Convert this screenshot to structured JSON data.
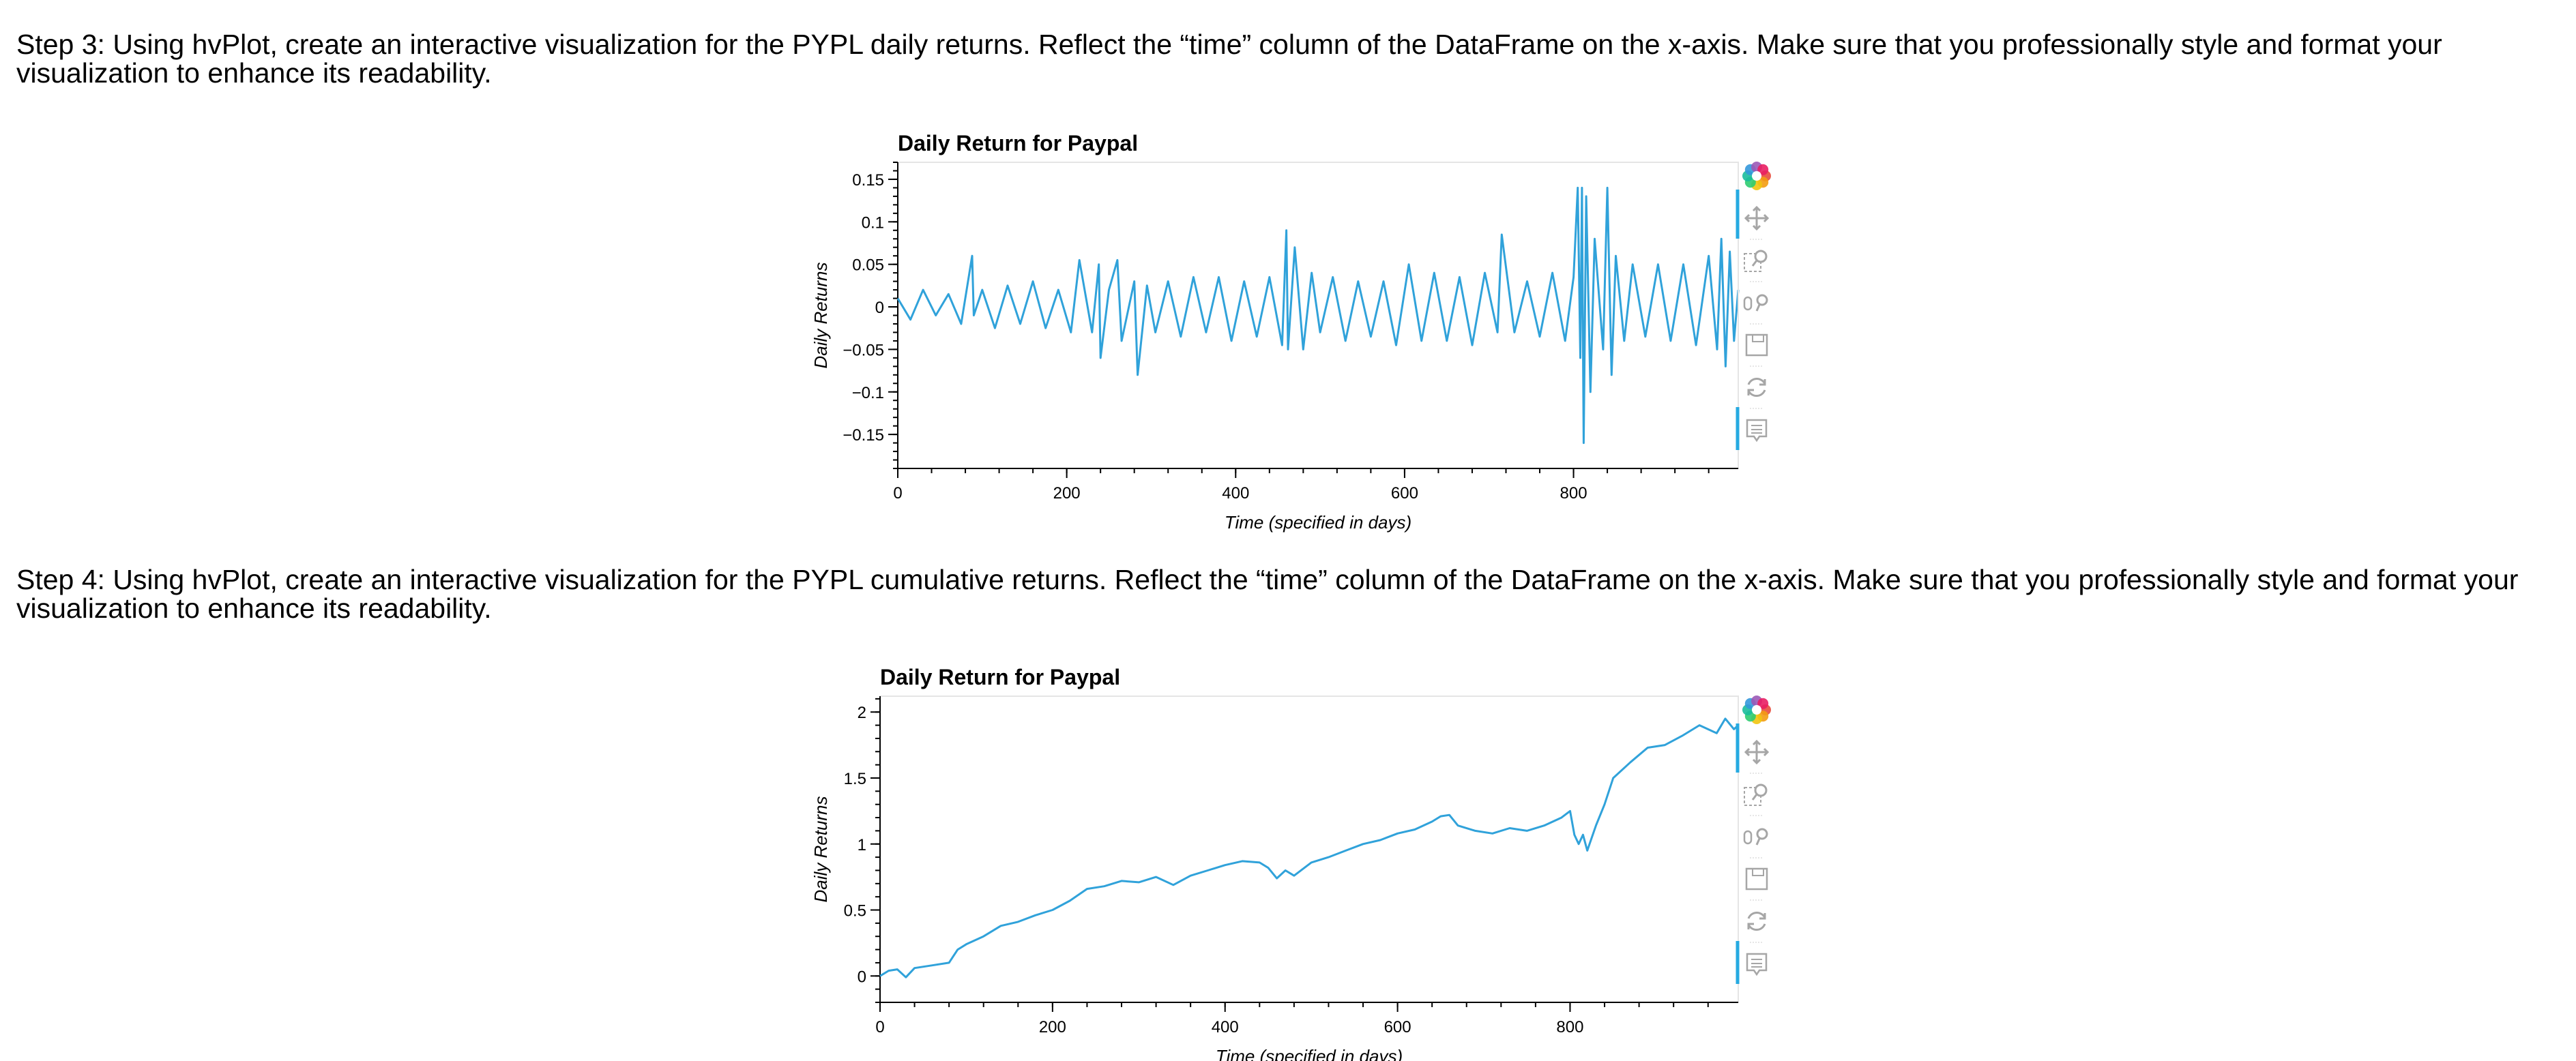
{
  "steps": {
    "step3": "Step 3: Using hvPlot, create an interactive visualization for the PYPL daily returns. Reflect the “time” column of the DataFrame on the x-axis. Make sure that you professionally style and format your visualization to enhance its readability.",
    "step4": "Step 4: Using hvPlot, create an interactive visualization for the PYPL cumulative returns. Reflect the “time” column of the DataFrame on the x-axis. Make sure that you professionally style and format your visualization to enhance its readability."
  },
  "colors": {
    "line": "#30a2da",
    "axis": "#000000",
    "frame": "#e5e5e5",
    "toolbar_icon": "#a6a6a6",
    "toolbar_active": "#26aae1"
  },
  "toolbar": [
    "bokeh-logo-icon",
    "pan-icon",
    "box-zoom-icon",
    "wheel-zoom-icon",
    "save-icon",
    "reset-icon",
    "hover-icon"
  ],
  "chart_data": [
    {
      "type": "line",
      "title": "Daily Return for Paypal",
      "xlabel": "Time (specified in days)",
      "ylabel": "Daily Returns",
      "xlim": [
        0,
        995
      ],
      "ylim": [
        -0.19,
        0.17
      ],
      "xticks": [
        0,
        200,
        400,
        600,
        800
      ],
      "xtick_labels": [
        "0",
        "200",
        "400",
        "600",
        "800"
      ],
      "yticks": [
        0.15,
        0.1,
        0.05,
        0,
        -0.05,
        -0.1,
        -0.15
      ],
      "ytick_labels": [
        "0.15",
        "0.1",
        "0.05",
        "0",
        "−0.05",
        "−0.1",
        "−0.15"
      ],
      "grid": false,
      "series": [
        {
          "x": [
            0,
            15,
            30,
            45,
            60,
            75,
            88,
            90,
            100,
            115,
            130,
            145,
            160,
            175,
            190,
            205,
            215,
            230,
            238,
            240,
            250,
            260,
            265,
            280,
            284,
            295,
            305,
            320,
            335,
            350,
            365,
            380,
            395,
            410,
            425,
            440,
            455,
            460,
            462,
            470,
            480,
            490,
            500,
            515,
            530,
            545,
            560,
            575,
            590,
            605,
            620,
            635,
            650,
            665,
            680,
            695,
            710,
            715,
            730,
            745,
            760,
            775,
            790,
            800,
            805,
            808,
            810,
            812,
            815,
            820,
            825,
            835,
            840,
            845,
            850,
            860,
            870,
            885,
            900,
            915,
            930,
            945,
            960,
            970,
            975,
            980,
            985,
            990,
            995
          ],
          "y": [
            0.01,
            -0.015,
            0.02,
            -0.01,
            0.015,
            -0.02,
            0.06,
            -0.01,
            0.02,
            -0.025,
            0.025,
            -0.02,
            0.03,
            -0.025,
            0.02,
            -0.03,
            0.055,
            -0.03,
            0.05,
            -0.06,
            0.02,
            0.055,
            -0.04,
            0.03,
            -0.08,
            0.025,
            -0.03,
            0.03,
            -0.035,
            0.035,
            -0.03,
            0.035,
            -0.04,
            0.03,
            -0.035,
            0.035,
            -0.045,
            0.09,
            -0.05,
            0.07,
            -0.05,
            0.04,
            -0.03,
            0.035,
            -0.04,
            0.03,
            -0.035,
            0.03,
            -0.045,
            0.05,
            -0.04,
            0.04,
            -0.04,
            0.035,
            -0.045,
            0.04,
            -0.03,
            0.085,
            -0.03,
            0.03,
            -0.035,
            0.04,
            -0.04,
            0.035,
            0.14,
            -0.06,
            0.14,
            -0.16,
            0.13,
            -0.1,
            0.08,
            -0.05,
            0.14,
            -0.08,
            0.06,
            -0.04,
            0.05,
            -0.035,
            0.05,
            -0.04,
            0.05,
            -0.045,
            0.06,
            -0.05,
            0.08,
            -0.07,
            0.065,
            -0.04,
            0.02
          ]
        }
      ]
    },
    {
      "type": "line",
      "title": "Daily Return for Paypal",
      "xlabel": "Time (specified in days)",
      "ylabel": "Daily Returns",
      "xlim": [
        0,
        995
      ],
      "ylim": [
        -0.2,
        2.12
      ],
      "xticks": [
        0,
        200,
        400,
        600,
        800
      ],
      "xtick_labels": [
        "0",
        "200",
        "400",
        "600",
        "800"
      ],
      "yticks": [
        2,
        1.5,
        1,
        0.5,
        0
      ],
      "ytick_labels": [
        "2",
        "1.5",
        "1",
        "0.5",
        "0"
      ],
      "grid": false,
      "series": [
        {
          "x": [
            0,
            10,
            20,
            30,
            40,
            60,
            80,
            90,
            100,
            120,
            140,
            160,
            180,
            200,
            220,
            240,
            260,
            280,
            300,
            320,
            340,
            360,
            380,
            400,
            420,
            440,
            450,
            460,
            470,
            480,
            500,
            520,
            540,
            560,
            580,
            600,
            620,
            640,
            650,
            660,
            670,
            690,
            710,
            730,
            750,
            770,
            790,
            800,
            805,
            810,
            815,
            820,
            830,
            840,
            850,
            870,
            890,
            910,
            930,
            950,
            970,
            980,
            990,
            995
          ],
          "y": [
            0.0,
            0.04,
            0.05,
            -0.01,
            0.06,
            0.08,
            0.1,
            0.2,
            0.24,
            0.3,
            0.38,
            0.41,
            0.46,
            0.5,
            0.57,
            0.66,
            0.68,
            0.72,
            0.71,
            0.75,
            0.69,
            0.76,
            0.8,
            0.84,
            0.87,
            0.86,
            0.82,
            0.74,
            0.8,
            0.76,
            0.86,
            0.9,
            0.95,
            1.0,
            1.03,
            1.08,
            1.11,
            1.17,
            1.21,
            1.22,
            1.14,
            1.1,
            1.08,
            1.12,
            1.1,
            1.14,
            1.2,
            1.25,
            1.07,
            1.0,
            1.07,
            0.95,
            1.14,
            1.3,
            1.5,
            1.62,
            1.73,
            1.75,
            1.82,
            1.9,
            1.84,
            1.95,
            1.87,
            1.9
          ]
        }
      ]
    }
  ]
}
